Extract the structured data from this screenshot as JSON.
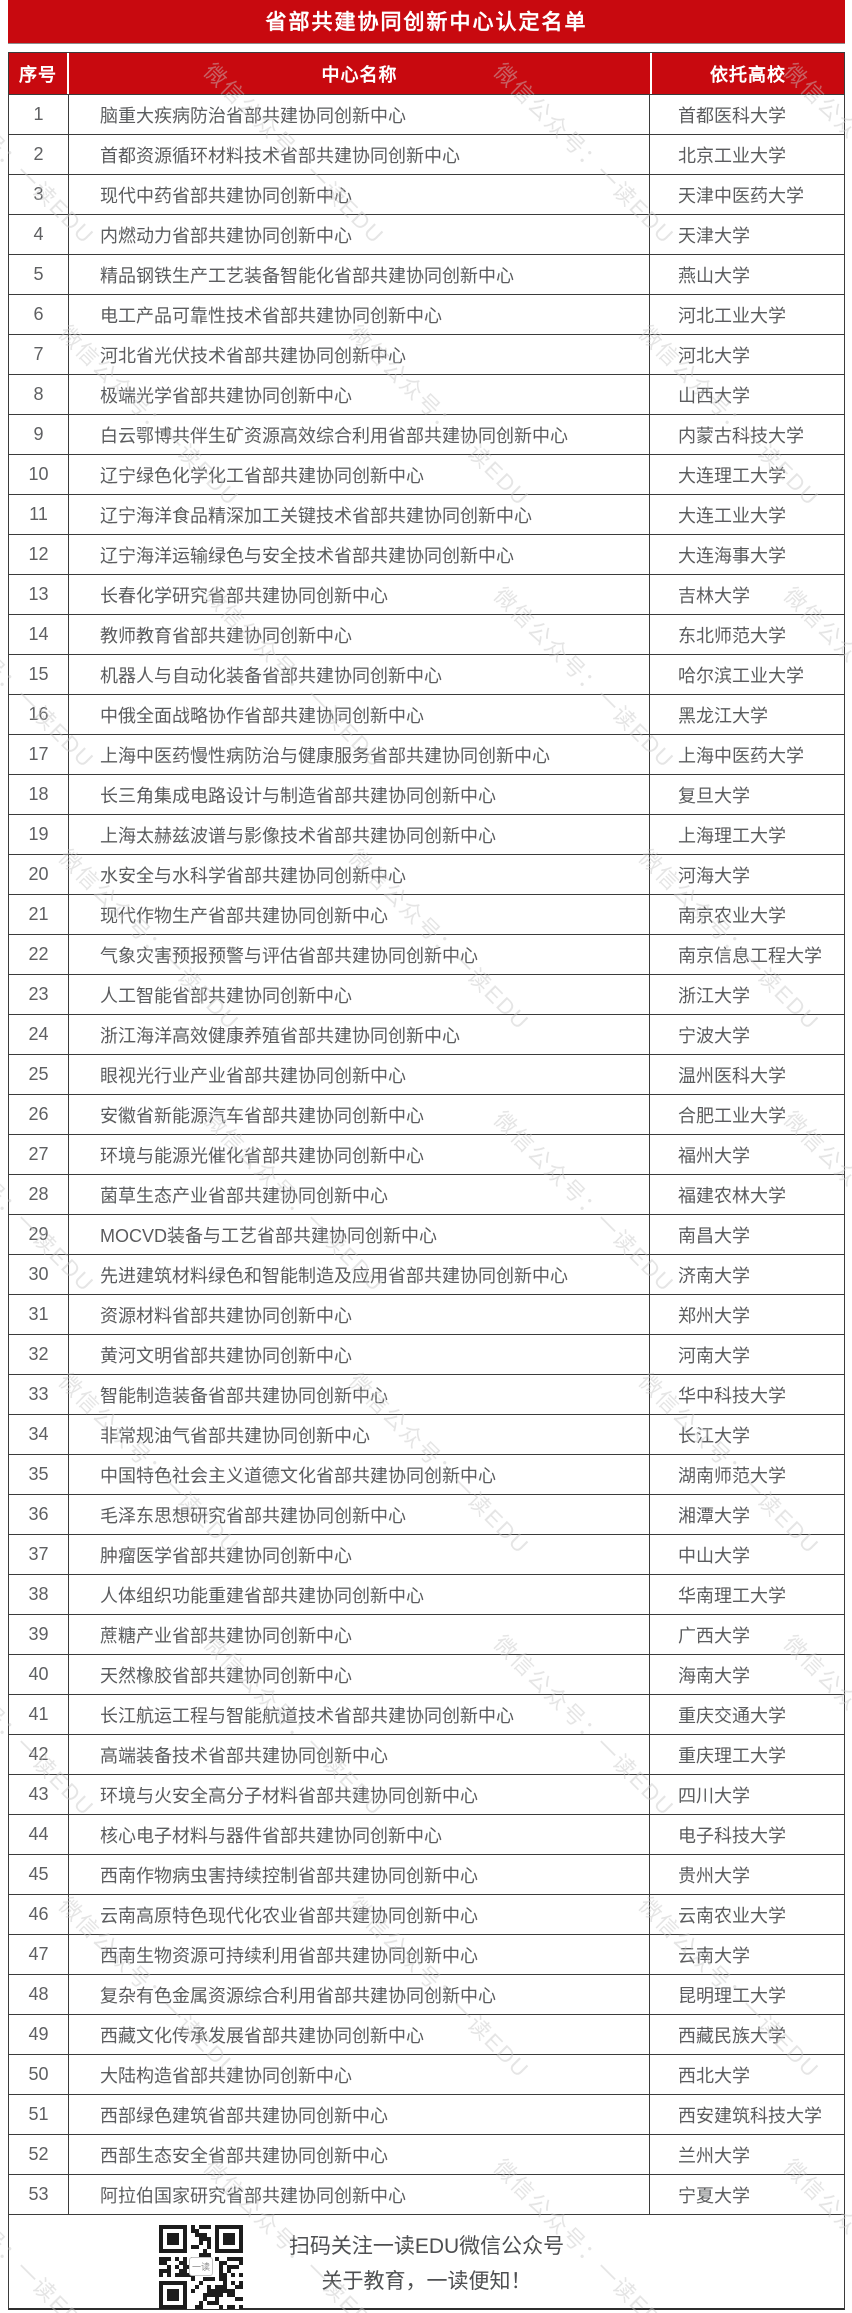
{
  "title": "省部共建协同创新中心认定名单",
  "colors": {
    "accent": "#c8090f",
    "header_text": "#ffffff",
    "body_text": "#5b5c5e",
    "border": "#3b3b3b",
    "watermark": "#c7c7c7"
  },
  "table": {
    "columns": [
      "序号",
      "中心名称",
      "依托高校"
    ],
    "rows": [
      {
        "no": "1",
        "center": "脑重大疾病防治省部共建协同创新中心",
        "university": "首都医科大学"
      },
      {
        "no": "2",
        "center": "首都资源循环材料技术省部共建协同创新中心",
        "university": "北京工业大学"
      },
      {
        "no": "3",
        "center": "现代中药省部共建协同创新中心",
        "university": "天津中医药大学"
      },
      {
        "no": "4",
        "center": "内燃动力省部共建协同创新中心",
        "university": "天津大学"
      },
      {
        "no": "5",
        "center": "精品钢铁生产工艺装备智能化省部共建协同创新中心",
        "university": "燕山大学"
      },
      {
        "no": "6",
        "center": "电工产品可靠性技术省部共建协同创新中心",
        "university": "河北工业大学"
      },
      {
        "no": "7",
        "center": "河北省光伏技术省部共建协同创新中心",
        "university": "河北大学"
      },
      {
        "no": "8",
        "center": "极端光学省部共建协同创新中心",
        "university": "山西大学"
      },
      {
        "no": "9",
        "center": "白云鄂博共伴生矿资源高效综合利用省部共建协同创新中心",
        "university": "内蒙古科技大学"
      },
      {
        "no": "10",
        "center": "辽宁绿色化学化工省部共建协同创新中心",
        "university": "大连理工大学"
      },
      {
        "no": "11",
        "center": "辽宁海洋食品精深加工关键技术省部共建协同创新中心",
        "university": "大连工业大学"
      },
      {
        "no": "12",
        "center": "辽宁海洋运输绿色与安全技术省部共建协同创新中心",
        "university": "大连海事大学"
      },
      {
        "no": "13",
        "center": "长春化学研究省部共建协同创新中心",
        "university": "吉林大学"
      },
      {
        "no": "14",
        "center": "教师教育省部共建协同创新中心",
        "university": "东北师范大学"
      },
      {
        "no": "15",
        "center": "机器人与自动化装备省部共建协同创新中心",
        "university": "哈尔滨工业大学"
      },
      {
        "no": "16",
        "center": "中俄全面战略协作省部共建协同创新中心",
        "university": "黑龙江大学"
      },
      {
        "no": "17",
        "center": "上海中医药慢性病防治与健康服务省部共建协同创新中心",
        "university": "上海中医药大学"
      },
      {
        "no": "18",
        "center": "长三角集成电路设计与制造省部共建协同创新中心",
        "university": "复旦大学"
      },
      {
        "no": "19",
        "center": "上海太赫兹波谱与影像技术省部共建协同创新中心",
        "university": "上海理工大学"
      },
      {
        "no": "20",
        "center": "水安全与水科学省部共建协同创新中心",
        "university": "河海大学"
      },
      {
        "no": "21",
        "center": "现代作物生产省部共建协同创新中心",
        "university": "南京农业大学"
      },
      {
        "no": "22",
        "center": "气象灾害预报预警与评估省部共建协同创新中心",
        "university": "南京信息工程大学"
      },
      {
        "no": "23",
        "center": "人工智能省部共建协同创新中心",
        "university": "浙江大学"
      },
      {
        "no": "24",
        "center": "浙江海洋高效健康养殖省部共建协同创新中心",
        "university": "宁波大学"
      },
      {
        "no": "25",
        "center": "眼视光行业产业省部共建协同创新中心",
        "university": "温州医科大学"
      },
      {
        "no": "26",
        "center": "安徽省新能源汽车省部共建协同创新中心",
        "university": "合肥工业大学"
      },
      {
        "no": "27",
        "center": "环境与能源光催化省部共建协同创新中心",
        "university": "福州大学"
      },
      {
        "no": "28",
        "center": "菌草生态产业省部共建协同创新中心",
        "university": "福建农林大学"
      },
      {
        "no": "29",
        "center": "MOCVD装备与工艺省部共建协同创新中心",
        "university": "南昌大学"
      },
      {
        "no": "30",
        "center": "先进建筑材料绿色和智能制造及应用省部共建协同创新中心",
        "university": "济南大学"
      },
      {
        "no": "31",
        "center": "资源材料省部共建协同创新中心",
        "university": "郑州大学"
      },
      {
        "no": "32",
        "center": "黄河文明省部共建协同创新中心",
        "university": "河南大学"
      },
      {
        "no": "33",
        "center": "智能制造装备省部共建协同创新中心",
        "university": "华中科技大学"
      },
      {
        "no": "34",
        "center": "非常规油气省部共建协同创新中心",
        "university": "长江大学"
      },
      {
        "no": "35",
        "center": "中国特色社会主义道德文化省部共建协同创新中心",
        "university": "湖南师范大学"
      },
      {
        "no": "36",
        "center": "毛泽东思想研究省部共建协同创新中心",
        "university": "湘潭大学"
      },
      {
        "no": "37",
        "center": "肿瘤医学省部共建协同创新中心",
        "university": "中山大学"
      },
      {
        "no": "38",
        "center": "人体组织功能重建省部共建协同创新中心",
        "university": "华南理工大学"
      },
      {
        "no": "39",
        "center": "蔗糖产业省部共建协同创新中心",
        "university": "广西大学"
      },
      {
        "no": "40",
        "center": "天然橡胶省部共建协同创新中心",
        "university": "海南大学"
      },
      {
        "no": "41",
        "center": "长江航运工程与智能航道技术省部共建协同创新中心",
        "university": "重庆交通大学"
      },
      {
        "no": "42",
        "center": "高端装备技术省部共建协同创新中心",
        "university": "重庆理工大学"
      },
      {
        "no": "43",
        "center": "环境与火安全高分子材料省部共建协同创新中心",
        "university": "四川大学"
      },
      {
        "no": "44",
        "center": "核心电子材料与器件省部共建协同创新中心",
        "university": "电子科技大学"
      },
      {
        "no": "45",
        "center": "西南作物病虫害持续控制省部共建协同创新中心",
        "university": "贵州大学"
      },
      {
        "no": "46",
        "center": "云南高原特色现代化农业省部共建协同创新中心",
        "university": "云南农业大学"
      },
      {
        "no": "47",
        "center": "西南生物资源可持续利用省部共建协同创新中心",
        "university": "云南大学"
      },
      {
        "no": "48",
        "center": "复杂有色金属资源综合利用省部共建协同创新中心",
        "university": "昆明理工大学"
      },
      {
        "no": "49",
        "center": "西藏文化传承发展省部共建协同创新中心",
        "university": "西藏民族大学"
      },
      {
        "no": "50",
        "center": "大陆构造省部共建协同创新中心",
        "university": "西北大学"
      },
      {
        "no": "51",
        "center": "西部绿色建筑省部共建协同创新中心",
        "university": "西安建筑科技大学"
      },
      {
        "no": "52",
        "center": "西部生态安全省部共建协同创新中心",
        "university": "兰州大学"
      },
      {
        "no": "53",
        "center": "阿拉伯国家研究省部共建协同创新中心",
        "university": "宁夏大学"
      }
    ]
  },
  "footer": {
    "line1": "扫码关注一读EDU微信公众号",
    "line2": "关于教育，一读便知！",
    "qr_logo": "一读"
  },
  "watermark": {
    "text": "微信公众号：一读EDU"
  }
}
